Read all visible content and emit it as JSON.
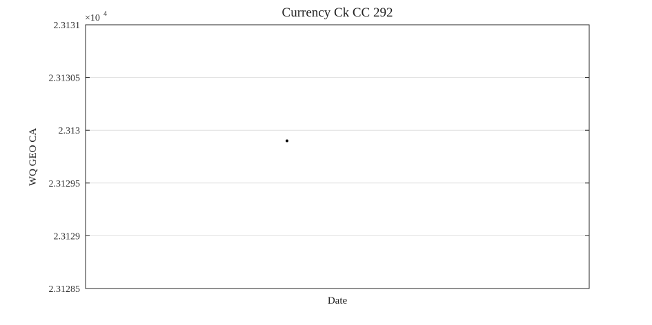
{
  "chart_data": {
    "type": "scatter",
    "title": "Currency Ck CC 292",
    "xlabel": "Date",
    "ylabel": "WQ GEO CA",
    "exponent_base": "×10",
    "exponent_power": "4",
    "yticks": [
      {
        "value": 2.31285,
        "label": "2.31285"
      },
      {
        "value": 2.3129,
        "label": "2.3129"
      },
      {
        "value": 2.31295,
        "label": "2.31295"
      },
      {
        "value": 2.313,
        "label": "2.313"
      },
      {
        "value": 2.31305,
        "label": "2.31305"
      },
      {
        "value": 2.3131,
        "label": "2.3131"
      }
    ],
    "ylim": [
      2.31285,
      2.3131
    ],
    "xlim": [
      0,
      1
    ],
    "points": [
      {
        "x": 0.4,
        "y": 2.31299
      }
    ],
    "grid": "horizontal",
    "legend": "none",
    "colors": {
      "marker": "#000000",
      "axis": "#262626",
      "grid": "#dfdfdf"
    }
  }
}
